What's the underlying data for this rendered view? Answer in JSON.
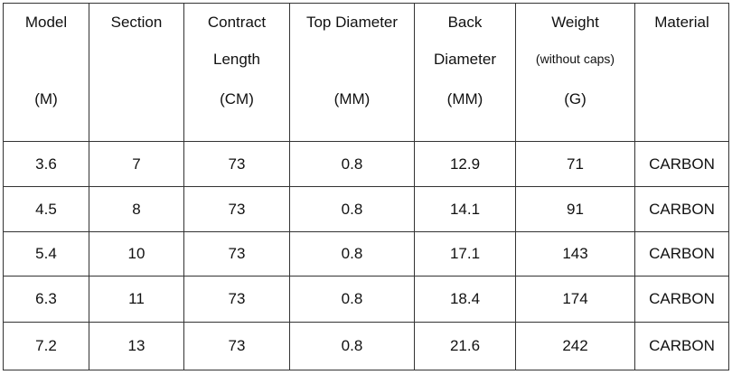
{
  "table": {
    "header": [
      [
        "Model"
      ],
      [
        "Section"
      ],
      [
        "Contract",
        "Length"
      ],
      [
        "Top Diameter"
      ],
      [
        "Back",
        "Diameter"
      ],
      [
        "Weight",
        "(without caps)"
      ],
      [
        "Material"
      ]
    ],
    "units": [
      "(M)",
      null,
      "(CM)",
      "(MM)",
      "(MM)",
      "(G)",
      null
    ],
    "rows": [
      [
        "3.6",
        "7",
        "73",
        "0.8",
        "12.9",
        "71",
        "CARBON"
      ],
      [
        "4.5",
        "8",
        "73",
        "0.8",
        "14.1",
        "91",
        "CARBON"
      ],
      [
        "5.4",
        "10",
        "73",
        "0.8",
        "17.1",
        "143",
        "CARBON"
      ],
      [
        "6.3",
        "11",
        "73",
        "0.8",
        "18.4",
        "174",
        "CARBON"
      ],
      [
        "7.2",
        "13",
        "73",
        "0.8",
        "21.6",
        "242",
        "CARBON"
      ]
    ]
  }
}
